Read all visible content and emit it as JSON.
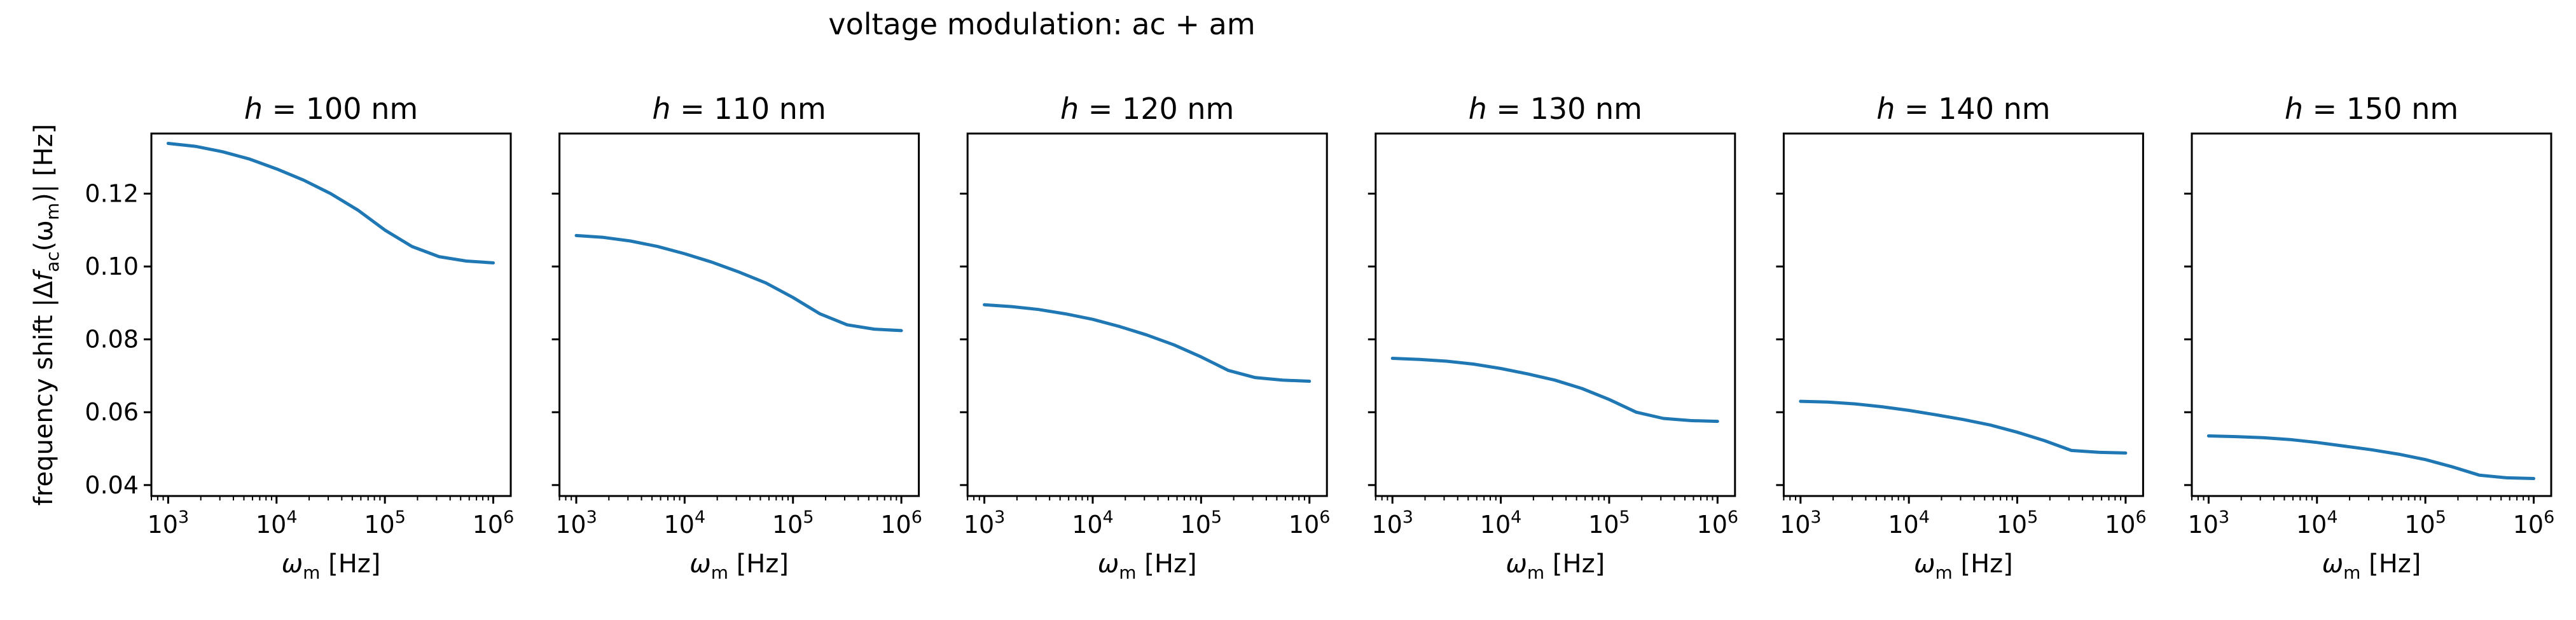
{
  "figure": {
    "suptitle": "voltage modulation: ac + am"
  },
  "chart_data": [
    {
      "type": "line",
      "title": "h = 100 nm",
      "title_var": "h",
      "title_rest": " = 100 nm",
      "xlabel_symbol": "ω",
      "xlabel_sub": "m",
      "xlabel_unit": " [Hz]",
      "ylabel_prefix": "frequency shift |Δ",
      "ylabel_f": "f",
      "ylabel_sub": "ac",
      "ylabel_mid": "(ω",
      "ylabel_sub2": "m",
      "ylabel_suffix": ")| [Hz]",
      "xscale": "log",
      "xlim": [
        700,
        1450000
      ],
      "ylim": [
        0.037,
        0.1365
      ],
      "xticks": [
        1000,
        10000,
        100000,
        1000000
      ],
      "xtick_labels": [
        {
          "base": "10",
          "exp": "3"
        },
        {
          "base": "10",
          "exp": "4"
        },
        {
          "base": "10",
          "exp": "5"
        },
        {
          "base": "10",
          "exp": "6"
        }
      ],
      "yticks": [
        0.04,
        0.06,
        0.08,
        0.1,
        0.12
      ],
      "ytick_labels": [
        "0.04",
        "0.06",
        "0.08",
        "0.10",
        "0.12"
      ],
      "show_ytick_labels": true,
      "color": "#1f77b4",
      "x": [
        1000,
        1778,
        3162,
        5623,
        10000,
        17783,
        31623,
        56234,
        100000,
        177828,
        316228,
        562341,
        1000000
      ],
      "y": [
        0.1338,
        0.133,
        0.1315,
        0.1295,
        0.1268,
        0.1237,
        0.12,
        0.1155,
        0.11,
        0.1055,
        0.1027,
        0.1015,
        0.101
      ]
    },
    {
      "type": "line",
      "title": "h = 110 nm",
      "title_var": "h",
      "title_rest": " = 110 nm",
      "xlabel_symbol": "ω",
      "xlabel_sub": "m",
      "xlabel_unit": " [Hz]",
      "xscale": "log",
      "xlim": [
        700,
        1450000
      ],
      "ylim": [
        0.037,
        0.1365
      ],
      "xticks": [
        1000,
        10000,
        100000,
        1000000
      ],
      "xtick_labels": [
        {
          "base": "10",
          "exp": "3"
        },
        {
          "base": "10",
          "exp": "4"
        },
        {
          "base": "10",
          "exp": "5"
        },
        {
          "base": "10",
          "exp": "6"
        }
      ],
      "yticks": [
        0.04,
        0.06,
        0.08,
        0.1,
        0.12
      ],
      "show_ytick_labels": false,
      "color": "#1f77b4",
      "x": [
        1000,
        1778,
        3162,
        5623,
        10000,
        17783,
        31623,
        56234,
        100000,
        177828,
        316228,
        562341,
        1000000
      ],
      "y": [
        0.1085,
        0.108,
        0.107,
        0.1055,
        0.1035,
        0.1012,
        0.0985,
        0.0955,
        0.0915,
        0.087,
        0.084,
        0.0828,
        0.0824
      ]
    },
    {
      "type": "line",
      "title": "h = 120 nm",
      "title_var": "h",
      "title_rest": " = 120 nm",
      "xlabel_symbol": "ω",
      "xlabel_sub": "m",
      "xlabel_unit": " [Hz]",
      "xscale": "log",
      "xlim": [
        700,
        1450000
      ],
      "ylim": [
        0.037,
        0.1365
      ],
      "xticks": [
        1000,
        10000,
        100000,
        1000000
      ],
      "xtick_labels": [
        {
          "base": "10",
          "exp": "3"
        },
        {
          "base": "10",
          "exp": "4"
        },
        {
          "base": "10",
          "exp": "5"
        },
        {
          "base": "10",
          "exp": "6"
        }
      ],
      "yticks": [
        0.04,
        0.06,
        0.08,
        0.1,
        0.12
      ],
      "show_ytick_labels": false,
      "color": "#1f77b4",
      "x": [
        1000,
        1778,
        3162,
        5623,
        10000,
        17783,
        31623,
        56234,
        100000,
        177828,
        316228,
        562341,
        1000000
      ],
      "y": [
        0.0895,
        0.089,
        0.0882,
        0.087,
        0.0855,
        0.0835,
        0.0812,
        0.0785,
        0.0752,
        0.0715,
        0.0695,
        0.0688,
        0.0685
      ]
    },
    {
      "type": "line",
      "title": "h = 130 nm",
      "title_var": "h",
      "title_rest": " = 130 nm",
      "xlabel_symbol": "ω",
      "xlabel_sub": "m",
      "xlabel_unit": " [Hz]",
      "xscale": "log",
      "xlim": [
        700,
        1450000
      ],
      "ylim": [
        0.037,
        0.1365
      ],
      "xticks": [
        1000,
        10000,
        100000,
        1000000
      ],
      "xtick_labels": [
        {
          "base": "10",
          "exp": "3"
        },
        {
          "base": "10",
          "exp": "4"
        },
        {
          "base": "10",
          "exp": "5"
        },
        {
          "base": "10",
          "exp": "6"
        }
      ],
      "yticks": [
        0.04,
        0.06,
        0.08,
        0.1,
        0.12
      ],
      "show_ytick_labels": false,
      "color": "#1f77b4",
      "x": [
        1000,
        1778,
        3162,
        5623,
        10000,
        17783,
        31623,
        56234,
        100000,
        177828,
        316228,
        562341,
        1000000
      ],
      "y": [
        0.0748,
        0.0745,
        0.074,
        0.0732,
        0.072,
        0.0705,
        0.0688,
        0.0665,
        0.0635,
        0.06,
        0.0583,
        0.0577,
        0.0575
      ]
    },
    {
      "type": "line",
      "title": "h = 140 nm",
      "title_var": "h",
      "title_rest": " = 140 nm",
      "xlabel_symbol": "ω",
      "xlabel_sub": "m",
      "xlabel_unit": " [Hz]",
      "xscale": "log",
      "xlim": [
        700,
        1450000
      ],
      "ylim": [
        0.037,
        0.1365
      ],
      "xticks": [
        1000,
        10000,
        100000,
        1000000
      ],
      "xtick_labels": [
        {
          "base": "10",
          "exp": "3"
        },
        {
          "base": "10",
          "exp": "4"
        },
        {
          "base": "10",
          "exp": "5"
        },
        {
          "base": "10",
          "exp": "6"
        }
      ],
      "yticks": [
        0.04,
        0.06,
        0.08,
        0.1,
        0.12
      ],
      "show_ytick_labels": false,
      "color": "#1f77b4",
      "x": [
        1000,
        1778,
        3162,
        5623,
        10000,
        17783,
        31623,
        56234,
        100000,
        177828,
        316228,
        562341,
        1000000
      ],
      "y": [
        0.063,
        0.0628,
        0.0623,
        0.0615,
        0.0605,
        0.0593,
        0.058,
        0.0565,
        0.0545,
        0.0522,
        0.0495,
        0.049,
        0.0488
      ]
    },
    {
      "type": "line",
      "title": "h = 150 nm",
      "title_var": "h",
      "title_rest": " = 150 nm",
      "xlabel_symbol": "ω",
      "xlabel_sub": "m",
      "xlabel_unit": " [Hz]",
      "xscale": "log",
      "xlim": [
        700,
        1450000
      ],
      "ylim": [
        0.037,
        0.1365
      ],
      "xticks": [
        1000,
        10000,
        100000,
        1000000
      ],
      "xtick_labels": [
        {
          "base": "10",
          "exp": "3"
        },
        {
          "base": "10",
          "exp": "4"
        },
        {
          "base": "10",
          "exp": "5"
        },
        {
          "base": "10",
          "exp": "6"
        }
      ],
      "yticks": [
        0.04,
        0.06,
        0.08,
        0.1,
        0.12
      ],
      "show_ytick_labels": false,
      "color": "#1f77b4",
      "x": [
        1000,
        1778,
        3162,
        5623,
        10000,
        17783,
        31623,
        56234,
        100000,
        177828,
        316228,
        562341,
        1000000
      ],
      "y": [
        0.0535,
        0.0533,
        0.053,
        0.0525,
        0.0517,
        0.0507,
        0.0497,
        0.0485,
        0.047,
        0.045,
        0.0427,
        0.042,
        0.0418
      ]
    }
  ]
}
